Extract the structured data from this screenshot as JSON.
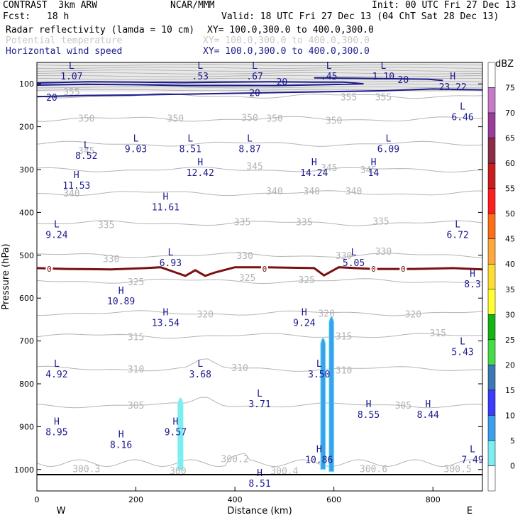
{
  "header": {
    "model": "CONTRAST  3km ARW",
    "center": "NCAR/MMM",
    "init": "Init: 00 UTC Fri 27 Dec 13",
    "fcst_label": "Fcst:",
    "fcst_value": "18 h",
    "valid": "Valid: 18 UTC Fri 27 Dec 13 (04 ChT Sat 28 Dec 13)",
    "fields": [
      {
        "name": "Radar reflectivity (lamda = 10 cm)",
        "xy": "XY= 100.0,300.0 to 400.0,300.0",
        "color": "#000000"
      },
      {
        "name": "Potential temperature",
        "xy": "XY= 100.0,300.0 to 400.0,300.0",
        "color": "#c8c8c8"
      },
      {
        "name": "Horizontal wind speed",
        "xy": "XY= 100.0,300.0 to 400.0,300.0",
        "color": "#1a1a8c"
      }
    ]
  },
  "chart_data": {
    "type": "cross-section",
    "xlabel": "Distance (km)",
    "ylabel": "Pressure (hPa)",
    "xlim": [
      0,
      900
    ],
    "ylim": [
      1050,
      50
    ],
    "x_ticks": [
      "0",
      "200",
      "400",
      "600",
      "800"
    ],
    "x_tick_values": [
      0,
      200,
      400,
      600,
      800
    ],
    "y_ticks": [
      "100",
      "200",
      "300",
      "400",
      "500",
      "600",
      "700",
      "800",
      "900",
      "1000"
    ],
    "y_tick_values": [
      100,
      200,
      300,
      400,
      500,
      600,
      700,
      800,
      900,
      1000
    ],
    "west_label": "W",
    "east_label": "E",
    "colorbar": {
      "unit": "dBZ",
      "ticks": [
        "75",
        "70",
        "65",
        "60",
        "55",
        "50",
        "45",
        "40",
        "35",
        "30",
        "25",
        "20",
        "15",
        "10",
        "5",
        "0"
      ],
      "colors": [
        "#ffffff",
        "#c87ac8",
        "#9a3c9a",
        "#8c2d46",
        "#c81e1e",
        "#ff1e1e",
        "#ff6e14",
        "#ffa83c",
        "#ffdc32",
        "#ffff32",
        "#14b414",
        "#46dc46",
        "#3c78b4",
        "#3c3cff",
        "#3ca0f0",
        "#7ceef0",
        "#ffffff"
      ]
    },
    "theta_labels": [
      {
        "text": "355",
        "x": 70,
        "p": 118
      },
      {
        "text": "355",
        "x": 630,
        "p": 130
      },
      {
        "text": "355",
        "x": 700,
        "p": 130
      },
      {
        "text": "350",
        "x": 100,
        "p": 180
      },
      {
        "text": "350",
        "x": 280,
        "p": 180
      },
      {
        "text": "350",
        "x": 430,
        "p": 178
      },
      {
        "text": "350",
        "x": 480,
        "p": 180
      },
      {
        "text": "350",
        "x": 600,
        "p": 185
      },
      {
        "text": "345",
        "x": 100,
        "p": 255
      },
      {
        "text": "345",
        "x": 440,
        "p": 292
      },
      {
        "text": "345",
        "x": 590,
        "p": 295
      },
      {
        "text": "345",
        "x": 670,
        "p": 300
      },
      {
        "text": "340",
        "x": 70,
        "p": 355
      },
      {
        "text": "340",
        "x": 480,
        "p": 350
      },
      {
        "text": "340",
        "x": 555,
        "p": 350
      },
      {
        "text": "340",
        "x": 640,
        "p": 350
      },
      {
        "text": "335",
        "x": 140,
        "p": 428
      },
      {
        "text": "335",
        "x": 415,
        "p": 422
      },
      {
        "text": "335",
        "x": 540,
        "p": 422
      },
      {
        "text": "335",
        "x": 695,
        "p": 420
      },
      {
        "text": "330",
        "x": 150,
        "p": 508
      },
      {
        "text": "330",
        "x": 420,
        "p": 500
      },
      {
        "text": "330",
        "x": 620,
        "p": 500
      },
      {
        "text": "330",
        "x": 700,
        "p": 490
      },
      {
        "text": "325",
        "x": 200,
        "p": 562
      },
      {
        "text": "325",
        "x": 425,
        "p": 552
      },
      {
        "text": "325",
        "x": 545,
        "p": 557
      },
      {
        "text": "320",
        "x": 340,
        "p": 637
      },
      {
        "text": "320",
        "x": 585,
        "p": 635
      },
      {
        "text": "320",
        "x": 760,
        "p": 637
      },
      {
        "text": "315",
        "x": 200,
        "p": 690
      },
      {
        "text": "315",
        "x": 620,
        "p": 688
      },
      {
        "text": "315",
        "x": 810,
        "p": 681
      },
      {
        "text": "310",
        "x": 200,
        "p": 765
      },
      {
        "text": "310",
        "x": 410,
        "p": 762
      },
      {
        "text": "310",
        "x": 620,
        "p": 768
      },
      {
        "text": "305",
        "x": 200,
        "p": 850
      },
      {
        "text": "305",
        "x": 740,
        "p": 850
      },
      {
        "text": "300.3",
        "x": 100,
        "p": 998
      },
      {
        "text": "300",
        "x": 285,
        "p": 1003
      },
      {
        "text": "300.2",
        "x": 400,
        "p": 975
      },
      {
        "text": "300.4",
        "x": 500,
        "p": 1003
      },
      {
        "text": "300.6",
        "x": 680,
        "p": 998
      },
      {
        "text": "300.5",
        "x": 850,
        "p": 998
      }
    ],
    "wind_markers": [
      {
        "type": "L",
        "x": 70,
        "p": 65,
        "value": "1.07"
      },
      {
        "type": "L",
        "x": 330,
        "p": 65,
        "value": ".53"
      },
      {
        "type": "L",
        "x": 440,
        "p": 65,
        "value": ".67"
      },
      {
        "type": "L",
        "x": 590,
        "p": 65,
        "value": ".45"
      },
      {
        "type": "L",
        "x": 700,
        "p": 65,
        "value": "1.10"
      },
      {
        "type": "H",
        "x": 840,
        "p": 90,
        "value": "23.22"
      },
      {
        "type": "L",
        "x": 860,
        "p": 160,
        "value": "6.46"
      },
      {
        "type": "L",
        "x": 100,
        "p": 250,
        "value": "8.52"
      },
      {
        "type": "L",
        "x": 200,
        "p": 235,
        "value": "9.03"
      },
      {
        "type": "L",
        "x": 310,
        "p": 235,
        "value": "8.51"
      },
      {
        "type": "L",
        "x": 430,
        "p": 235,
        "value": "8.87"
      },
      {
        "type": "L",
        "x": 710,
        "p": 235,
        "value": "6.09"
      },
      {
        "type": "H",
        "x": 330,
        "p": 290,
        "value": "12.42"
      },
      {
        "type": "H",
        "x": 560,
        "p": 290,
        "value": "14.24"
      },
      {
        "type": "H",
        "x": 680,
        "p": 290,
        "value": "14"
      },
      {
        "type": "H",
        "x": 80,
        "p": 320,
        "value": "11.53"
      },
      {
        "type": "H",
        "x": 260,
        "p": 370,
        "value": "11.61"
      },
      {
        "type": "L",
        "x": 40,
        "p": 435,
        "value": "9.24"
      },
      {
        "type": "L",
        "x": 850,
        "p": 435,
        "value": "6.72"
      },
      {
        "type": "L",
        "x": 270,
        "p": 500,
        "value": "6.93"
      },
      {
        "type": "L",
        "x": 640,
        "p": 500,
        "value": "5.05"
      },
      {
        "type": "H",
        "x": 880,
        "p": 550,
        "value": "8.3"
      },
      {
        "type": "H",
        "x": 170,
        "p": 590,
        "value": "10.89"
      },
      {
        "type": "H",
        "x": 260,
        "p": 640,
        "value": "13.54"
      },
      {
        "type": "H",
        "x": 540,
        "p": 640,
        "value": "9.24"
      },
      {
        "type": "L",
        "x": 860,
        "p": 708,
        "value": "5.43"
      },
      {
        "type": "L",
        "x": 40,
        "p": 760,
        "value": "4.92"
      },
      {
        "type": "L",
        "x": 330,
        "p": 760,
        "value": "3.68"
      },
      {
        "type": "L",
        "x": 570,
        "p": 760,
        "value": "3.50"
      },
      {
        "type": "L",
        "x": 450,
        "p": 830,
        "value": "3.71"
      },
      {
        "type": "H",
        "x": 670,
        "p": 855,
        "value": "8.55"
      },
      {
        "type": "H",
        "x": 790,
        "p": 855,
        "value": "8.44"
      },
      {
        "type": "H",
        "x": 40,
        "p": 895,
        "value": "8.95"
      },
      {
        "type": "H",
        "x": 280,
        "p": 895,
        "value": "9.57"
      },
      {
        "type": "H",
        "x": 170,
        "p": 925,
        "value": "8.16"
      },
      {
        "type": "H",
        "x": 570,
        "p": 960,
        "value": "10.86"
      },
      {
        "type": "L",
        "x": 880,
        "p": 960,
        "value": "7.49"
      },
      {
        "type": "H",
        "x": 450,
        "p": 1015,
        "value": "8.51"
      }
    ],
    "wind_contours": [
      {
        "label": "20",
        "points": [
          [
            0,
            98
          ],
          [
            100,
            95
          ],
          [
            200,
            96
          ],
          [
            300,
            97
          ],
          [
            380,
            96
          ],
          [
            470,
            95
          ],
          [
            560,
            96
          ],
          [
            620,
            96
          ],
          [
            660,
            100
          ],
          [
            580,
            102
          ],
          [
            480,
            104
          ],
          [
            380,
            104
          ],
          [
            300,
            104
          ],
          [
            200,
            102
          ],
          [
            100,
            101
          ],
          [
            0,
            103
          ]
        ]
      },
      {
        "label": "20",
        "points": [
          [
            560,
            86
          ],
          [
            640,
            87
          ],
          [
            720,
            88
          ],
          [
            790,
            89
          ],
          [
            820,
            92
          ]
        ]
      },
      {
        "label": "20",
        "points": [
          [
            0,
            130
          ],
          [
            100,
            127
          ],
          [
            200,
            126
          ],
          [
            300,
            124
          ],
          [
            400,
            122
          ],
          [
            500,
            120
          ],
          [
            600,
            118
          ],
          [
            700,
            116
          ],
          [
            800,
            112
          ],
          [
            900,
            114
          ]
        ]
      }
    ],
    "wind_contour_label_positions": [
      {
        "text": "20",
        "x": 495,
        "p": 95
      },
      {
        "text": "20",
        "x": 740,
        "p": 90
      },
      {
        "text": "20",
        "x": 30,
        "p": 131
      },
      {
        "text": "20",
        "x": 440,
        "p": 120
      }
    ],
    "zero_contour_label": "0",
    "zero_contour_label_x": [
      25,
      460,
      680,
      740
    ],
    "zero_contour": [
      [
        0,
        530
      ],
      [
        60,
        532
      ],
      [
        150,
        533
      ],
      [
        220,
        530
      ],
      [
        250,
        528
      ],
      [
        280,
        540
      ],
      [
        300,
        548
      ],
      [
        320,
        535
      ],
      [
        340,
        548
      ],
      [
        360,
        540
      ],
      [
        400,
        528
      ],
      [
        460,
        528
      ],
      [
        560,
        530
      ],
      [
        580,
        547
      ],
      [
        610,
        528
      ],
      [
        680,
        532
      ],
      [
        760,
        532
      ],
      [
        840,
        530
      ],
      [
        900,
        533
      ]
    ],
    "reflectivity_cells": [
      {
        "x": 290,
        "p_top": 830,
        "p_bot": 1000,
        "color": "#7ceef0"
      },
      {
        "x": 578,
        "p_top": 690,
        "p_bot": 1000,
        "color": "#3ca0f0"
      },
      {
        "x": 595,
        "p_top": 640,
        "p_bot": 1005,
        "color": "#3ca0f0"
      }
    ]
  }
}
